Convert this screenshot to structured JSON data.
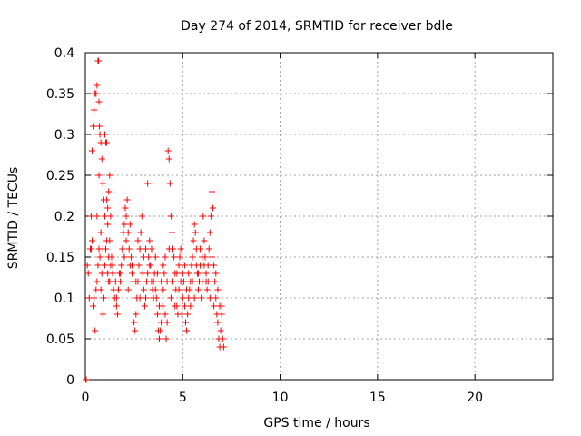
{
  "chart_data": {
    "type": "scatter",
    "title": "Day 274 of 2014, SRMTID for receiver bdle",
    "xlabel": "GPS time / hours",
    "ylabel": "SRMTID / TECUs",
    "xlim": [
      0,
      24
    ],
    "ylim": [
      0,
      0.4
    ],
    "xticks": [
      0,
      5,
      10,
      15,
      20
    ],
    "yticks": [
      0,
      0.05,
      0.1,
      0.15,
      0.2,
      0.25,
      0.3,
      0.35,
      0.4
    ],
    "xtick_labels": [
      "0",
      "5",
      "10",
      "15",
      "20"
    ],
    "ytick_labels": [
      "0",
      "0.05",
      "0.1",
      "0.15",
      "0.2",
      "0.25",
      "0.3",
      "0.35",
      "0.4"
    ],
    "grid": true,
    "marker": "+",
    "color": "#ff0000",
    "series": [
      {
        "name": "SRMTID",
        "points": [
          [
            0.02,
            0.0
          ],
          [
            0.05,
            0.0
          ],
          [
            0.1,
            0.14
          ],
          [
            0.15,
            0.13
          ],
          [
            0.2,
            0.1
          ],
          [
            0.25,
            0.16
          ],
          [
            0.3,
            0.2
          ],
          [
            0.35,
            0.28
          ],
          [
            0.4,
            0.31
          ],
          [
            0.45,
            0.33
          ],
          [
            0.5,
            0.35
          ],
          [
            0.55,
            0.35
          ],
          [
            0.6,
            0.36
          ],
          [
            0.65,
            0.39
          ],
          [
            0.68,
            0.39
          ],
          [
            0.7,
            0.34
          ],
          [
            0.72,
            0.31
          ],
          [
            0.75,
            0.3
          ],
          [
            0.8,
            0.29
          ],
          [
            0.85,
            0.27
          ],
          [
            0.9,
            0.24
          ],
          [
            0.95,
            0.22
          ],
          [
            1.0,
            0.3
          ],
          [
            1.05,
            0.29
          ],
          [
            1.1,
            0.29
          ],
          [
            1.15,
            0.21
          ],
          [
            1.2,
            0.23
          ],
          [
            1.25,
            0.25
          ],
          [
            1.3,
            0.2
          ],
          [
            0.3,
            0.16
          ],
          [
            0.35,
            0.17
          ],
          [
            0.4,
            0.09
          ],
          [
            0.45,
            0.1
          ],
          [
            0.5,
            0.06
          ],
          [
            0.55,
            0.11
          ],
          [
            0.6,
            0.12
          ],
          [
            0.65,
            0.14
          ],
          [
            0.7,
            0.16
          ],
          [
            0.75,
            0.15
          ],
          [
            0.8,
            0.11
          ],
          [
            0.85,
            0.13
          ],
          [
            0.9,
            0.08
          ],
          [
            0.95,
            0.1
          ],
          [
            1.0,
            0.14
          ],
          [
            1.05,
            0.16
          ],
          [
            1.1,
            0.17
          ],
          [
            1.15,
            0.13
          ],
          [
            1.2,
            0.15
          ],
          [
            1.25,
            0.12
          ],
          [
            1.3,
            0.14
          ],
          [
            1.35,
            0.15
          ],
          [
            1.4,
            0.13
          ],
          [
            1.45,
            0.11
          ],
          [
            1.5,
            0.1
          ],
          [
            1.55,
            0.12
          ],
          [
            1.6,
            0.09
          ],
          [
            1.65,
            0.08
          ],
          [
            1.7,
            0.11
          ],
          [
            1.75,
            0.13
          ],
          [
            1.8,
            0.12
          ],
          [
            1.85,
            0.14
          ],
          [
            1.9,
            0.16
          ],
          [
            1.95,
            0.18
          ],
          [
            2.0,
            0.19
          ],
          [
            2.05,
            0.21
          ],
          [
            2.1,
            0.2
          ],
          [
            2.15,
            0.22
          ],
          [
            2.2,
            0.18
          ],
          [
            2.25,
            0.16
          ],
          [
            2.3,
            0.14
          ],
          [
            2.35,
            0.15
          ],
          [
            2.4,
            0.13
          ],
          [
            2.45,
            0.12
          ],
          [
            2.5,
            0.07
          ],
          [
            2.55,
            0.06
          ],
          [
            2.6,
            0.08
          ],
          [
            2.65,
            0.1
          ],
          [
            2.7,
            0.12
          ],
          [
            2.75,
            0.14
          ],
          [
            2.8,
            0.16
          ],
          [
            2.85,
            0.18
          ],
          [
            2.9,
            0.2
          ],
          [
            2.95,
            0.13
          ],
          [
            3.0,
            0.11
          ],
          [
            3.05,
            0.09
          ],
          [
            3.1,
            0.1
          ],
          [
            3.15,
            0.12
          ],
          [
            3.2,
            0.24
          ],
          [
            3.25,
            0.15
          ],
          [
            3.3,
            0.17
          ],
          [
            3.35,
            0.14
          ],
          [
            3.4,
            0.12
          ],
          [
            3.45,
            0.11
          ],
          [
            3.5,
            0.1
          ],
          [
            3.55,
            0.13
          ],
          [
            3.6,
            0.15
          ],
          [
            3.65,
            0.1
          ],
          [
            3.7,
            0.08
          ],
          [
            3.75,
            0.06
          ],
          [
            3.8,
            0.05
          ],
          [
            3.85,
            0.06
          ],
          [
            3.9,
            0.07
          ],
          [
            3.95,
            0.09
          ],
          [
            4.0,
            0.11
          ],
          [
            4.05,
            0.13
          ],
          [
            4.1,
            0.08
          ],
          [
            4.15,
            0.05
          ],
          [
            4.2,
            0.07
          ],
          [
            4.25,
            0.28
          ],
          [
            4.3,
            0.27
          ],
          [
            4.35,
            0.24
          ],
          [
            4.4,
            0.2
          ],
          [
            4.45,
            0.18
          ],
          [
            4.5,
            0.16
          ],
          [
            4.55,
            0.15
          ],
          [
            4.6,
            0.13
          ],
          [
            4.65,
            0.11
          ],
          [
            4.7,
            0.09
          ],
          [
            4.75,
            0.08
          ],
          [
            4.8,
            0.14
          ],
          [
            4.85,
            0.15
          ],
          [
            4.9,
            0.16
          ],
          [
            4.95,
            0.08
          ],
          [
            5.0,
            0.1
          ],
          [
            5.05,
            0.12
          ],
          [
            5.1,
            0.09
          ],
          [
            5.15,
            0.07
          ],
          [
            5.2,
            0.06
          ],
          [
            5.25,
            0.08
          ],
          [
            5.3,
            0.1
          ],
          [
            5.35,
            0.11
          ],
          [
            5.4,
            0.12
          ],
          [
            5.45,
            0.14
          ],
          [
            5.5,
            0.15
          ],
          [
            5.55,
            0.17
          ],
          [
            5.6,
            0.19
          ],
          [
            5.65,
            0.18
          ],
          [
            5.7,
            0.16
          ],
          [
            5.75,
            0.13
          ],
          [
            5.8,
            0.11
          ],
          [
            5.85,
            0.12
          ],
          [
            5.9,
            0.14
          ],
          [
            5.95,
            0.1
          ],
          [
            6.0,
            0.12
          ],
          [
            6.05,
            0.2
          ],
          [
            6.1,
            0.17
          ],
          [
            6.15,
            0.15
          ],
          [
            6.2,
            0.13
          ],
          [
            6.25,
            0.11
          ],
          [
            6.3,
            0.14
          ],
          [
            6.35,
            0.16
          ],
          [
            6.4,
            0.18
          ],
          [
            6.45,
            0.2
          ],
          [
            6.5,
            0.23
          ],
          [
            6.55,
            0.21
          ],
          [
            6.6,
            0.14
          ],
          [
            6.65,
            0.12
          ],
          [
            6.7,
            0.1
          ],
          [
            6.75,
            0.08
          ],
          [
            6.8,
            0.07
          ],
          [
            6.85,
            0.05
          ],
          [
            6.9,
            0.04
          ],
          [
            6.95,
            0.06
          ],
          [
            7.0,
            0.08
          ],
          [
            7.05,
            0.05
          ],
          [
            7.1,
            0.04
          ],
          [
            1.2,
            0.12
          ],
          [
            1.4,
            0.14
          ],
          [
            1.6,
            0.1
          ],
          [
            1.8,
            0.13
          ],
          [
            2.0,
            0.15
          ],
          [
            2.2,
            0.11
          ],
          [
            2.4,
            0.14
          ],
          [
            2.6,
            0.12
          ],
          [
            2.8,
            0.1
          ],
          [
            3.0,
            0.15
          ],
          [
            3.2,
            0.13
          ],
          [
            3.4,
            0.16
          ],
          [
            3.6,
            0.11
          ],
          [
            3.8,
            0.09
          ],
          [
            4.0,
            0.14
          ],
          [
            4.2,
            0.12
          ],
          [
            4.4,
            0.1
          ],
          [
            4.6,
            0.09
          ],
          [
            4.8,
            0.11
          ],
          [
            5.0,
            0.13
          ],
          [
            5.2,
            0.11
          ],
          [
            5.4,
            0.09
          ],
          [
            5.6,
            0.1
          ],
          [
            5.8,
            0.13
          ],
          [
            6.0,
            0.15
          ],
          [
            6.2,
            0.12
          ],
          [
            6.4,
            0.1
          ],
          [
            6.6,
            0.09
          ],
          [
            6.8,
            0.11
          ],
          [
            7.0,
            0.09
          ],
          [
            0.6,
            0.2
          ],
          [
            0.8,
            0.18
          ],
          [
            1.0,
            0.2
          ],
          [
            1.1,
            0.22
          ],
          [
            0.9,
            0.16
          ],
          [
            0.7,
            0.25
          ],
          [
            1.15,
            0.19
          ],
          [
            1.25,
            0.17
          ],
          [
            2.1,
            0.17
          ],
          [
            2.3,
            0.19
          ],
          [
            2.7,
            0.17
          ],
          [
            3.1,
            0.16
          ],
          [
            3.3,
            0.14
          ],
          [
            3.5,
            0.12
          ],
          [
            3.7,
            0.13
          ],
          [
            3.9,
            0.12
          ],
          [
            4.1,
            0.15
          ],
          [
            4.3,
            0.16
          ],
          [
            4.5,
            0.12
          ],
          [
            4.7,
            0.13
          ],
          [
            4.9,
            0.12
          ],
          [
            5.1,
            0.14
          ],
          [
            5.3,
            0.13
          ],
          [
            5.5,
            0.12
          ],
          [
            5.7,
            0.14
          ],
          [
            5.9,
            0.16
          ],
          [
            6.1,
            0.14
          ],
          [
            6.3,
            0.12
          ],
          [
            6.5,
            0.15
          ],
          [
            6.7,
            0.13
          ],
          [
            6.9,
            0.09
          ]
        ]
      }
    ]
  }
}
